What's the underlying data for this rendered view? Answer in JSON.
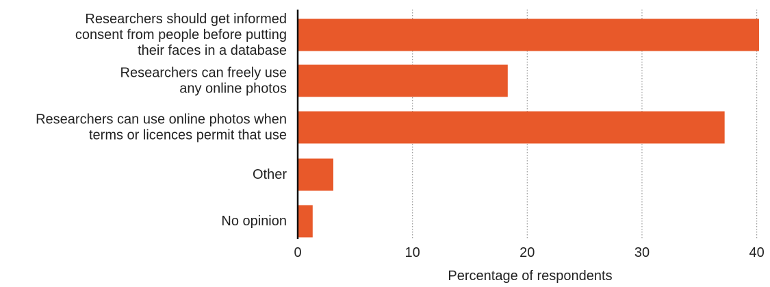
{
  "chart_data": {
    "type": "bar",
    "orientation": "horizontal",
    "categories": [
      [
        "Researchers should get informed",
        "consent from people before putting",
        "their faces in a database"
      ],
      [
        "Researchers can freely use",
        "any online photos"
      ],
      [
        "Researchers can use online photos when",
        "terms or licences permit that use"
      ],
      [
        "Other"
      ],
      [
        "No opinion"
      ]
    ],
    "values": [
      40.2,
      18.3,
      37.2,
      3.1,
      1.3
    ],
    "xlabel": "Percentage of respondents",
    "xlim": [
      0,
      40.5
    ],
    "xticks": [
      0,
      10,
      20,
      30,
      40
    ],
    "grid": "vertical dotted",
    "bar_color": "#e8592a",
    "axis_color": "#111111",
    "grid_color": "#999999"
  }
}
